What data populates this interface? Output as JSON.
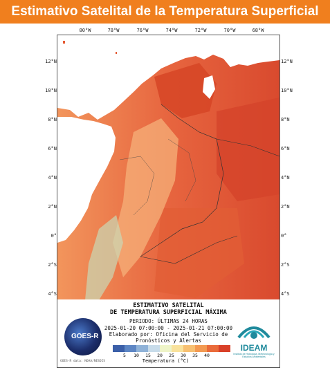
{
  "header": {
    "title": "Estimativo Satelital de la Temperatura Superficial"
  },
  "axes": {
    "longitudes": [
      "80°W",
      "78°W",
      "76°W",
      "74°W",
      "72°W",
      "70°W",
      "68°W"
    ],
    "latitudes": [
      "12°N",
      "10°N",
      "8°N",
      "6°N",
      "4°N",
      "2°N",
      "0°",
      "2°S",
      "4°S"
    ]
  },
  "legend": {
    "title_line1": "ESTIMATIVO SATELITAL",
    "title_line2": "DE TEMPERATURA SUPERFICIAL MÁXIMA",
    "period": "PERIODO: ÚLTIMAS 24 HORAS",
    "date_range": "2025-01-20 07:00:00 - 2025-01-21 07:00:00",
    "elaborated_line1": "Elaborado por: Oficina del Servicio de",
    "elaborated_line2": "Pronósticos y Alertas",
    "scale_ticks": [
      "5",
      "10",
      "15",
      "20",
      "25",
      "30",
      "35",
      "40"
    ],
    "scale_label": "Temperatura (°C)",
    "scale_colors": [
      "#3b5fa8",
      "#5d86c4",
      "#8fb2d8",
      "#c8dcea",
      "#eef4c8",
      "#f9e29c",
      "#f7c072",
      "#f39a52",
      "#ea6b3a",
      "#d94028"
    ]
  },
  "logos": {
    "goes_text": "GOES-R",
    "credit": "GOES-R data: NOAA/NESDIS",
    "ideam_name": "IDEAM",
    "ideam_subtitle": "Instituto de Hidrología, Meteorología y Estudios Ambientales"
  },
  "colors": {
    "banner": "#f07f1e",
    "banner_text": "#ffffff"
  }
}
